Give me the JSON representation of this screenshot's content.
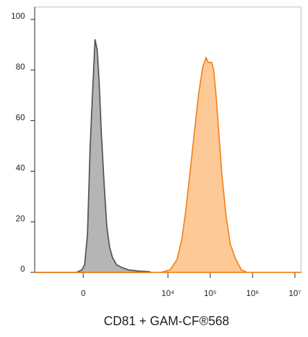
{
  "chart_data": {
    "type": "area",
    "x_label": "CD81 + GAM-CF®568",
    "x_scale": "asinh",
    "asinh_cofactor": 200,
    "xlim": [
      -1400,
      14000000
    ],
    "xticks": [
      0,
      {
        "value": 10000,
        "label": "10⁴"
      },
      {
        "value": 100000,
        "label": "10⁵"
      },
      {
        "value": 1000000,
        "label": "10⁶"
      },
      {
        "value": 10000000,
        "label": "10⁷"
      }
    ],
    "ylim": [
      0,
      100
    ],
    "yticks": [
      0,
      20,
      40,
      60,
      80,
      100
    ],
    "series": [
      {
        "color": "#555555",
        "fill": "#b5b5b5",
        "x": [
          -1400,
          -77,
          -15,
          15,
          46,
          77,
          111,
          137,
          166,
          196,
          230,
          279,
          333,
          395,
          467,
          594,
          784,
          1154,
          2046,
          3606,
          4000
        ],
        "values": [
          0,
          0,
          1,
          3,
          15,
          50,
          75,
          92,
          88,
          75,
          55,
          35,
          18,
          10,
          6,
          3,
          2,
          1,
          0.5,
          0.3,
          0
        ]
      },
      {
        "color": "#f5841f",
        "fill": "#fdc996",
        "x": [
          -1400,
          6860,
          11200,
          16300,
          21300,
          26700,
          33500,
          42000,
          52600,
          66000,
          79800,
          89400,
          108000,
          121000,
          140000,
          163000,
          190000,
          238000,
          299000,
          404000,
          546000,
          739000,
          14000000
        ],
        "values": [
          0,
          0,
          1,
          5,
          13,
          25,
          40,
          55,
          70,
          81,
          85,
          83,
          83,
          80,
          68,
          53,
          38,
          22,
          11,
          5,
          1,
          0,
          0
        ]
      }
    ]
  }
}
